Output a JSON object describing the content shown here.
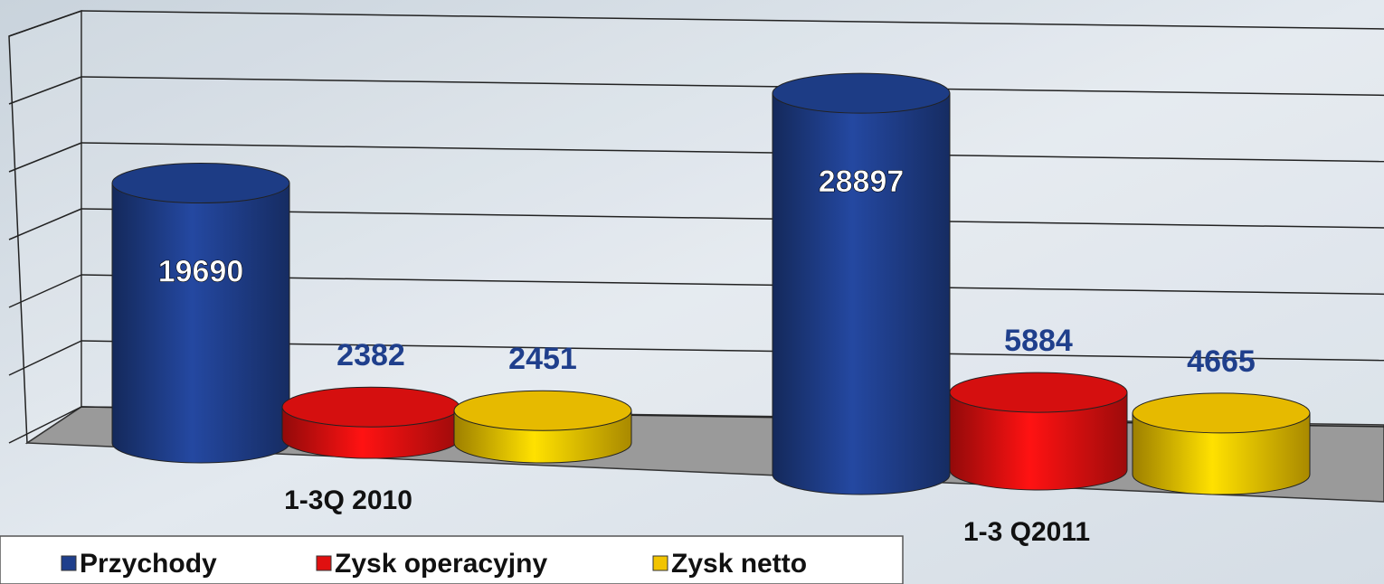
{
  "chart_data": {
    "type": "bar3d",
    "categories": [
      "1-3Q 2010",
      "1-3 Q2011"
    ],
    "series": [
      {
        "name": "Przychody",
        "color": "#1f3f8c",
        "values": [
          19690,
          28897
        ]
      },
      {
        "name": "Zysk operacyjny",
        "color": "#e01010",
        "values": [
          2382,
          5884
        ]
      },
      {
        "name": "Zysk netto",
        "color": "#f2c400",
        "values": [
          2451,
          4665
        ]
      }
    ],
    "ylim": [
      0,
      30000
    ],
    "yticks": [
      0,
      5000,
      10000,
      15000,
      20000,
      25000,
      30000
    ],
    "grid": true,
    "legend": "bottom-left"
  }
}
